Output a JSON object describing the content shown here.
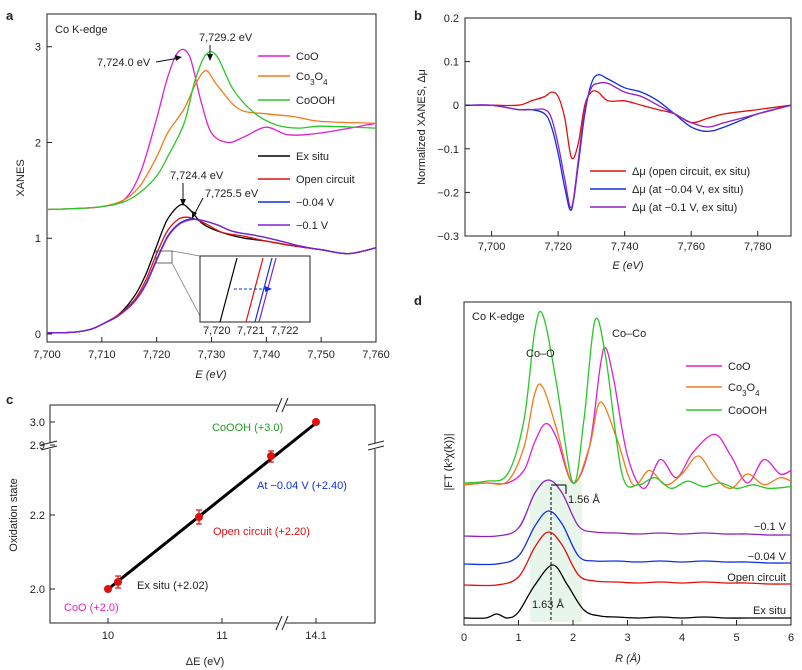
{
  "chart_data": [
    {
      "id": "a",
      "panel_label": "a",
      "type": "line",
      "title": "Co K-edge",
      "xlabel": "E (eV)",
      "ylabel": "XANES",
      "xlim": [
        7700,
        7760
      ],
      "ylim": [
        0,
        3.3
      ],
      "xticks": [
        "7,700",
        "7,710",
        "7,720",
        "7,730",
        "7,740",
        "7,750",
        "7,760"
      ],
      "yticks": [
        "0",
        "1",
        "2",
        "3"
      ],
      "series": [
        {
          "name": "CoO",
          "color": "#e020d0",
          "x": [
            7700,
            7705,
            7710,
            7714,
            7717,
            7720,
            7722,
            7724,
            7726,
            7728,
            7730,
            7733,
            7736,
            7740,
            7744,
            7750,
            7760
          ],
          "y": [
            1.3,
            1.31,
            1.33,
            1.4,
            1.68,
            2.25,
            2.68,
            2.95,
            2.9,
            2.45,
            2.1,
            2.0,
            2.06,
            2.16,
            2.08,
            2.1,
            2.2
          ]
        },
        {
          "name": "Co3O4",
          "label_html": "Co<tspan baseline-shift='sub' font-size='8'>3</tspan>O<tspan baseline-shift='sub' font-size='8'>4</tspan>",
          "color": "#f07b1a",
          "x": [
            7700,
            7705,
            7710,
            7714,
            7717,
            7720,
            7722,
            7725,
            7727,
            7729,
            7731,
            7735,
            7740,
            7745,
            7750,
            7760
          ],
          "y": [
            1.3,
            1.31,
            1.33,
            1.4,
            1.55,
            1.85,
            2.1,
            2.35,
            2.6,
            2.75,
            2.6,
            2.35,
            2.3,
            2.27,
            2.22,
            2.2
          ]
        },
        {
          "name": "CoOOH",
          "color": "#28c828",
          "x": [
            7700,
            7705,
            7710,
            7714,
            7717,
            7720,
            7722,
            7725,
            7727,
            7729,
            7731,
            7734,
            7738,
            7742,
            7746,
            7750,
            7760
          ],
          "y": [
            1.3,
            1.31,
            1.33,
            1.38,
            1.48,
            1.65,
            1.85,
            2.2,
            2.65,
            2.92,
            2.9,
            2.55,
            2.3,
            2.18,
            2.15,
            2.17,
            2.15
          ]
        },
        {
          "name": "Ex situ",
          "color": "#000000",
          "x": [
            7700,
            7705,
            7708,
            7710,
            7713,
            7716,
            7718,
            7720,
            7722,
            7724.4,
            7726,
            7728,
            7730,
            7733,
            7736,
            7740,
            7745,
            7750,
            7755,
            7760
          ],
          "y": [
            0.01,
            0.02,
            0.05,
            0.1,
            0.2,
            0.4,
            0.62,
            0.92,
            1.2,
            1.35,
            1.3,
            1.17,
            1.1,
            1.04,
            1.0,
            0.97,
            0.92,
            0.88,
            0.84,
            0.9
          ]
        },
        {
          "name": "Open circuit",
          "color": "#e01010",
          "x": [
            7700,
            7705,
            7708,
            7710,
            7713,
            7716,
            7718,
            7720,
            7722,
            7724,
            7725.5,
            7727,
            7729,
            7732,
            7736,
            7740,
            7745,
            7750,
            7755,
            7760
          ],
          "y": [
            0.01,
            0.02,
            0.05,
            0.1,
            0.2,
            0.36,
            0.56,
            0.84,
            1.08,
            1.2,
            1.22,
            1.2,
            1.15,
            1.06,
            1.02,
            0.97,
            0.92,
            0.88,
            0.84,
            0.9
          ]
        },
        {
          "name": "-0.04 V",
          "label": "−0.04 V",
          "color": "#1030e0",
          "x": [
            7700,
            7705,
            7708,
            7710,
            7713,
            7716,
            7718,
            7720,
            7722,
            7724,
            7726,
            7728,
            7731,
            7734,
            7738,
            7742,
            7746,
            7750,
            7755,
            7760
          ],
          "y": [
            0.01,
            0.02,
            0.05,
            0.1,
            0.19,
            0.34,
            0.52,
            0.78,
            1.02,
            1.15,
            1.2,
            1.19,
            1.14,
            1.07,
            1.03,
            0.98,
            0.92,
            0.88,
            0.84,
            0.9
          ]
        },
        {
          "name": "-0.1 V",
          "label": "−0.1 V",
          "color": "#8020d0",
          "x": [
            7700,
            7705,
            7708,
            7710,
            7713,
            7716,
            7718,
            7720,
            7722,
            7724,
            7726,
            7728,
            7731,
            7734,
            7738,
            7742,
            7746,
            7750,
            7755,
            7760
          ],
          "y": [
            0.01,
            0.02,
            0.05,
            0.1,
            0.19,
            0.34,
            0.51,
            0.77,
            1.01,
            1.14,
            1.19,
            1.19,
            1.14,
            1.07,
            1.03,
            0.98,
            0.92,
            0.88,
            0.84,
            0.9
          ]
        }
      ],
      "annotations": [
        "7,724.0 eV",
        "7,729.2 eV",
        "7,724.4 eV",
        "7,725.5 eV"
      ],
      "inset": {
        "xticks": [
          "7,720",
          "7,721",
          "7,722"
        ]
      }
    },
    {
      "id": "b",
      "panel_label": "b",
      "type": "line",
      "xlabel": "E (eV)",
      "ylabel": "Normalized XANES, Δμ",
      "xlim": [
        7692,
        7790
      ],
      "ylim": [
        -0.3,
        0.2
      ],
      "xticks": [
        "7,700",
        "7,720",
        "7,740",
        "7,760",
        "7,780"
      ],
      "xtick_values": [
        7700,
        7720,
        7740,
        7760,
        7780
      ],
      "yticks": [
        "0.2",
        "0.1",
        "0",
        "−0.1",
        "−0.2",
        "−0.3"
      ],
      "ytick_values": [
        0.2,
        0.1,
        0,
        -0.1,
        -0.2,
        -0.3
      ],
      "series": [
        {
          "name": "Δμ (open circuit, ex situ)",
          "color": "#e01010",
          "x": [
            7692,
            7700,
            7708,
            7712,
            7716,
            7718,
            7720,
            7722,
            7724,
            7726,
            7728,
            7730,
            7732,
            7735,
            7740,
            7745,
            7750,
            7755,
            7760,
            7765,
            7770,
            7780,
            7790
          ],
          "y": [
            0.0,
            0.0,
            0.0,
            0.01,
            0.02,
            0.03,
            0.02,
            -0.03,
            -0.12,
            -0.09,
            0.0,
            0.03,
            0.03,
            0.01,
            0.01,
            0.0,
            -0.01,
            -0.02,
            -0.04,
            -0.03,
            -0.02,
            -0.01,
            0.0
          ]
        },
        {
          "name": "Δμ (at −0.04 V, ex situ)",
          "color": "#1030e0",
          "x": [
            7692,
            7700,
            7708,
            7712,
            7716,
            7718,
            7720,
            7722,
            7724,
            7726,
            7728,
            7730,
            7732,
            7735,
            7740,
            7745,
            7750,
            7755,
            7760,
            7765,
            7770,
            7780,
            7790
          ],
          "y": [
            0.0,
            0.0,
            -0.01,
            -0.01,
            -0.02,
            -0.05,
            -0.11,
            -0.19,
            -0.24,
            -0.14,
            -0.02,
            0.05,
            0.07,
            0.06,
            0.04,
            0.03,
            0.01,
            -0.02,
            -0.05,
            -0.06,
            -0.05,
            -0.02,
            0.0
          ]
        },
        {
          "name": "Δμ (at −0.1 V, ex situ)",
          "color": "#9020c0",
          "x": [
            7692,
            7700,
            7708,
            7712,
            7716,
            7718,
            7720,
            7722,
            7724,
            7726,
            7728,
            7730,
            7732,
            7735,
            7740,
            7745,
            7750,
            7755,
            7760,
            7765,
            7770,
            7780,
            7790
          ],
          "y": [
            0.0,
            0.0,
            -0.01,
            -0.01,
            -0.01,
            -0.03,
            -0.09,
            -0.17,
            -0.235,
            -0.13,
            -0.01,
            0.04,
            0.05,
            0.05,
            0.03,
            0.02,
            0.0,
            -0.02,
            -0.04,
            -0.05,
            -0.04,
            -0.02,
            0.0
          ]
        }
      ]
    },
    {
      "id": "c",
      "panel_label": "c",
      "type": "scatter",
      "xlabel": "ΔE (eV)",
      "ylabel": "Oxidation state",
      "xticks": [
        "10",
        "11",
        "14.1"
      ],
      "yticks": [
        "2.0",
        "2.2",
        "2.9",
        "3.0"
      ],
      "points": [
        {
          "label": "CoO (+2.0)",
          "x": 10.0,
          "y": 2.0,
          "color": "#e020d0"
        },
        {
          "label": "Ex situ (+2.02)",
          "x": 10.1,
          "y": 2.02,
          "color": "#222222"
        },
        {
          "label": "Open circuit (+2.20)",
          "x": 10.8,
          "y": 2.2,
          "color": "#e01010"
        },
        {
          "label": "At −0.04 V (+2.40)",
          "x": 11.4,
          "y": 2.4,
          "color": "#1030e0"
        },
        {
          "label": "CoOOH (+3.0)",
          "x": 14.1,
          "y": 3.0,
          "color": "#20a020"
        }
      ]
    },
    {
      "id": "d",
      "panel_label": "d",
      "type": "line",
      "title": "Co K-edge",
      "xlabel": "R (Å)",
      "ylabel": "|FT (k³χ(k))|",
      "xlim": [
        0,
        6
      ],
      "xticks": [
        "0",
        "1",
        "2",
        "3",
        "4",
        "5",
        "6"
      ],
      "series": [
        {
          "name": "CoO",
          "color": "#e020d0",
          "x": [
            0,
            0.4,
            0.8,
            1.1,
            1.3,
            1.5,
            1.7,
            2.0,
            2.3,
            2.5,
            2.6,
            2.75,
            3.0,
            3.3,
            3.6,
            3.9,
            4.2,
            4.6,
            4.9,
            5.2,
            5.5,
            5.8,
            6.0
          ],
          "y": [
            0.04,
            0.05,
            0.05,
            0.12,
            0.28,
            0.38,
            0.3,
            0.05,
            0.25,
            0.7,
            0.8,
            0.62,
            0.2,
            0.02,
            0.18,
            0.08,
            0.22,
            0.32,
            0.2,
            0.05,
            0.18,
            0.1,
            0.12
          ]
        },
        {
          "name": "Co3O4",
          "label_html": "Co<tspan baseline-shift='sub' font-size='8'>3</tspan>O<tspan baseline-shift='sub' font-size='8'>4</tspan>",
          "color": "#f07b1a",
          "x": [
            0,
            0.4,
            0.8,
            1.1,
            1.3,
            1.45,
            1.7,
            2.0,
            2.3,
            2.5,
            2.8,
            3.1,
            3.4,
            3.7,
            4.0,
            4.3,
            4.6,
            4.9,
            5.2,
            5.5,
            5.8,
            6.0
          ],
          "y": [
            0.04,
            0.05,
            0.06,
            0.25,
            0.55,
            0.58,
            0.35,
            0.05,
            0.25,
            0.5,
            0.3,
            0.04,
            0.12,
            0.04,
            0.1,
            0.2,
            0.08,
            0.02,
            0.1,
            0.04,
            0.08,
            0.06
          ]
        },
        {
          "name": "CoOOH",
          "color": "#28c828",
          "x": [
            0,
            0.4,
            0.8,
            1.1,
            1.3,
            1.45,
            1.7,
            2.0,
            2.2,
            2.4,
            2.6,
            2.9,
            3.2,
            3.5,
            3.8,
            4.1,
            4.4,
            4.7,
            5.0,
            5.3,
            5.6,
            6.0
          ],
          "y": [
            0.05,
            0.06,
            0.1,
            0.4,
            0.9,
            0.98,
            0.6,
            0.05,
            0.4,
            0.95,
            0.75,
            0.1,
            0.04,
            0.08,
            0.02,
            0.06,
            0.03,
            0.05,
            0.02,
            0.04,
            0.02,
            0.03
          ]
        },
        {
          "name": "-0.1 V",
          "label": "−0.1 V",
          "color": "#9020c0",
          "x": [
            0,
            0.6,
            1.0,
            1.3,
            1.55,
            1.8,
            2.1,
            2.4,
            2.8,
            3.2,
            3.6,
            4.0,
            4.4,
            4.8,
            5.2,
            5.6,
            6.0
          ],
          "y": [
            0.02,
            0.02,
            0.1,
            0.45,
            0.58,
            0.45,
            0.12,
            0.06,
            0.05,
            0.04,
            0.05,
            0.04,
            0.05,
            0.04,
            0.04,
            0.03,
            0.03
          ]
        },
        {
          "name": "-0.04 V",
          "label": "−0.04 V",
          "color": "#1030e0",
          "x": [
            0,
            0.6,
            1.0,
            1.3,
            1.55,
            1.8,
            2.1,
            2.4,
            2.8,
            3.2,
            3.6,
            4.0,
            4.4,
            4.8,
            5.2,
            5.6,
            6.0
          ],
          "y": [
            0.02,
            0.02,
            0.1,
            0.4,
            0.55,
            0.42,
            0.1,
            0.05,
            0.05,
            0.04,
            0.05,
            0.04,
            0.05,
            0.04,
            0.04,
            0.03,
            0.03
          ]
        },
        {
          "name": "Open circuit",
          "color": "#e01010",
          "x": [
            0,
            0.6,
            1.0,
            1.3,
            1.55,
            1.8,
            2.1,
            2.4,
            2.8,
            3.2,
            3.6,
            4.0,
            4.4,
            4.8,
            5.2,
            5.6,
            6.0
          ],
          "y": [
            0.02,
            0.02,
            0.1,
            0.4,
            0.55,
            0.42,
            0.12,
            0.06,
            0.05,
            0.04,
            0.05,
            0.04,
            0.05,
            0.04,
            0.04,
            0.03,
            0.03
          ]
        },
        {
          "name": "Ex situ",
          "color": "#000000",
          "x": [
            0,
            0.4,
            0.6,
            0.8,
            1.0,
            1.3,
            1.63,
            1.9,
            2.2,
            2.5,
            2.8,
            3.2,
            3.6,
            4.0,
            4.4,
            4.8,
            5.2,
            5.6,
            6.0
          ],
          "y": [
            0.02,
            0.02,
            0.06,
            0.02,
            0.08,
            0.35,
            0.55,
            0.35,
            0.1,
            0.04,
            0.03,
            0.02,
            0.03,
            0.02,
            0.03,
            0.02,
            0.02,
            0.02,
            0.02
          ]
        }
      ],
      "annotations": [
        "Co–O",
        "Co–Co",
        "1.56 Å",
        "1.63 Å"
      ]
    }
  ]
}
